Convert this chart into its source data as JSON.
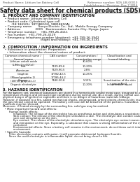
{
  "title": "Safety data sheet for chemical products (SDS)",
  "header_left": "Product Name: Lithium Ion Battery Cell",
  "header_right_line1": "Reference number: SDS-LIB-00010",
  "header_right_line2": "Establishment / Revision: Dec.7.2016",
  "section1_title": "1. PRODUCT AND COMPANY IDENTIFICATION",
  "section1_lines": [
    "  • Product name: Lithium Ion Battery Cell",
    "  • Product code: Cylindrical-type cell",
    "         (18 18650U, 18Y18650U, 18B18650A)",
    "  • Company name:      Sanyo Electric Co., Ltd., Mobile Energy Company",
    "  • Address:               2001   Kamimonden, Sumoto-City, Hyogo, Japan",
    "  • Telephone number:    +81-799-26-4111",
    "  • Fax number:  +81-799-26-4129",
    "  • Emergency telephone number (daytime): +81-799-26-3942",
    "                                       (Night and holiday): +81-799-26-3131"
  ],
  "section2_title": "2. COMPOSITION / INFORMATION ON INGREDIENTS",
  "section2_sub": "  • Substance or preparation: Preparation",
  "section2_sub2": "    • Information about the chemical nature of product:",
  "table_headers": [
    "Common chemical name /\nSeveral name",
    "CAS number",
    "Concentration /\nConcentration range",
    "Classification and\nhazard labeling"
  ],
  "table_col1": [
    "Lithium cobalt oxide\n(LiMnxCoyO2(x))",
    "Iron",
    "Aluminum",
    "Graphite\n(Mixed graphite-1)\n(18750 graphite-1)",
    "Copper",
    "Organic electrolyte"
  ],
  "table_col2": [
    "",
    "7439-89-6\n7429-90-5",
    "",
    "17782-42-5\n17785-44-2",
    "7440-50-8",
    ""
  ],
  "table_col3": [
    "30-60%",
    "10-20%\n2-8%",
    "",
    "10-25%",
    "5-15%",
    "10-20%"
  ],
  "table_col4": [
    "",
    "",
    "",
    "",
    "Sensitization of the skin\ngroup No.2",
    "Inflammable liquid"
  ],
  "section3_title": "3. HAZARDS IDENTIFICATION",
  "section3_para1": [
    "For the battery cell, chemical substances are stored in a hermetically sealed metal case, designed to withstand",
    "temperature changes and pressure-type conditions during normal use. As a result, during normal use, there is no",
    "physical danger of ignition or explosion and there is no danger of hazardous materials leakage.",
    "However, if exposed to a fire, added mechanical shocks, decomposed, armed electro-chemical dry reuse use,",
    "the gas release cannot be operated. The battery cell case will be breached of the portions, hazardous",
    "materials may be released.",
    "Moreover, if heated strongly by the surrounding fire, solid gas may be emitted."
  ],
  "section3_bullet1": "  • Most important hazard and effects:",
  "section3_human": "       Human health effects:",
  "section3_human_lines": [
    "            Inhalation: The release of the electrolyte has an anesthesia action and stimulates a respiratory tract.",
    "            Skin contact: The release of the electrolyte stimulates a skin. The electrolyte skin contact causes a",
    "            sore and stimulation on the skin.",
    "            Eye contact: The release of the electrolyte stimulates eyes. The electrolyte eye contact causes a sore",
    "            and stimulation on the eye. Especially, a substance that causes a strong inflammation of the eye is",
    "            contained.",
    "            Environmental effects: Since a battery cell remains in the environment, do not throw out it into the",
    "            environment."
  ],
  "section3_bullet2": "  • Specific hazards:",
  "section3_specific": [
    "       If the electrolyte contacts with water, it will generate detrimental hydrogen fluoride.",
    "       Since the used electrolyte is inflammable liquid, do not bring close to fire."
  ],
  "bg_color": "#ffffff",
  "text_color": "#111111",
  "gray_color": "#555555",
  "line_color": "#000000",
  "table_line_color": "#999999"
}
